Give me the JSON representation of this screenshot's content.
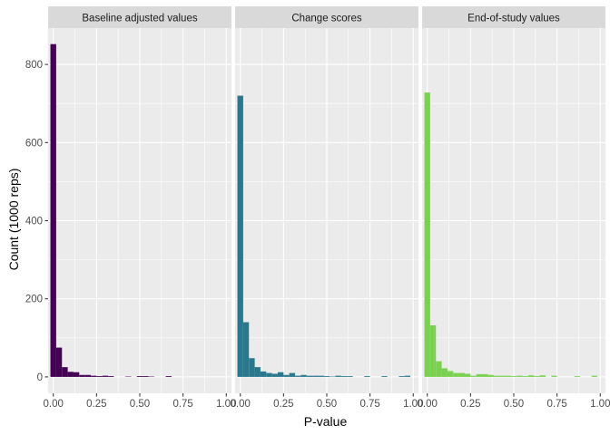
{
  "chart_data": {
    "type": "bar",
    "xlabel": "P-value",
    "ylabel": "Count (1000 reps)",
    "xlim": [
      -0.03,
      1.03
    ],
    "ylim": [
      -42,
      893
    ],
    "x_ticks": [
      "0.00",
      "0.25",
      "0.50",
      "0.75",
      "1.00"
    ],
    "y_ticks": [
      "0",
      "200",
      "400",
      "600",
      "800"
    ],
    "grid": true,
    "legend": "none",
    "bin_width": 0.0333,
    "panels": [
      {
        "title": "Baseline adjusted values",
        "color": "#440154",
        "x": [
          0.0,
          0.0333,
          0.0667,
          0.1,
          0.1333,
          0.1667,
          0.2,
          0.2333,
          0.2667,
          0.3,
          0.3333,
          0.3667,
          0.4,
          0.4333,
          0.4667,
          0.5,
          0.5333,
          0.5667,
          0.6,
          0.6333,
          0.6667,
          0.7,
          0.7333,
          0.7667,
          0.8,
          0.8333,
          0.8667,
          0.9,
          0.9333,
          0.9667,
          1.0
        ],
        "values": [
          852,
          75,
          25,
          13,
          12,
          5,
          5,
          3,
          2,
          3,
          2,
          0,
          0,
          1,
          0,
          2,
          2,
          1,
          0,
          0,
          2,
          0,
          0,
          0,
          0,
          0,
          0,
          0,
          0,
          0,
          0
        ]
      },
      {
        "title": "Change scores",
        "color": "#2A788E",
        "x": [
          0.0,
          0.0333,
          0.0667,
          0.1,
          0.1333,
          0.1667,
          0.2,
          0.2333,
          0.2667,
          0.3,
          0.3333,
          0.3667,
          0.4,
          0.4333,
          0.4667,
          0.5,
          0.5333,
          0.5667,
          0.6,
          0.6333,
          0.6667,
          0.7,
          0.7333,
          0.7667,
          0.8,
          0.8333,
          0.8667,
          0.9,
          0.9333,
          0.9667,
          1.0
        ],
        "values": [
          720,
          140,
          48,
          25,
          14,
          10,
          8,
          12,
          5,
          10,
          3,
          5,
          3,
          3,
          3,
          2,
          1,
          3,
          2,
          2,
          0,
          0,
          2,
          0,
          0,
          2,
          0,
          0,
          2,
          3,
          0
        ]
      },
      {
        "title": "End-of-study values",
        "color": "#7AD151",
        "x": [
          0.0,
          0.0333,
          0.0667,
          0.1,
          0.1333,
          0.1667,
          0.2,
          0.2333,
          0.2667,
          0.3,
          0.3333,
          0.3667,
          0.4,
          0.4333,
          0.4667,
          0.5,
          0.5333,
          0.5667,
          0.6,
          0.6333,
          0.6667,
          0.7,
          0.7333,
          0.7667,
          0.8,
          0.8333,
          0.8667,
          0.9,
          0.9333,
          0.9667,
          1.0
        ],
        "values": [
          728,
          132,
          40,
          22,
          15,
          10,
          10,
          8,
          3,
          7,
          7,
          5,
          3,
          3,
          3,
          2,
          3,
          2,
          4,
          2,
          4,
          0,
          3,
          0,
          0,
          0,
          2,
          0,
          0,
          3,
          0
        ]
      }
    ]
  }
}
